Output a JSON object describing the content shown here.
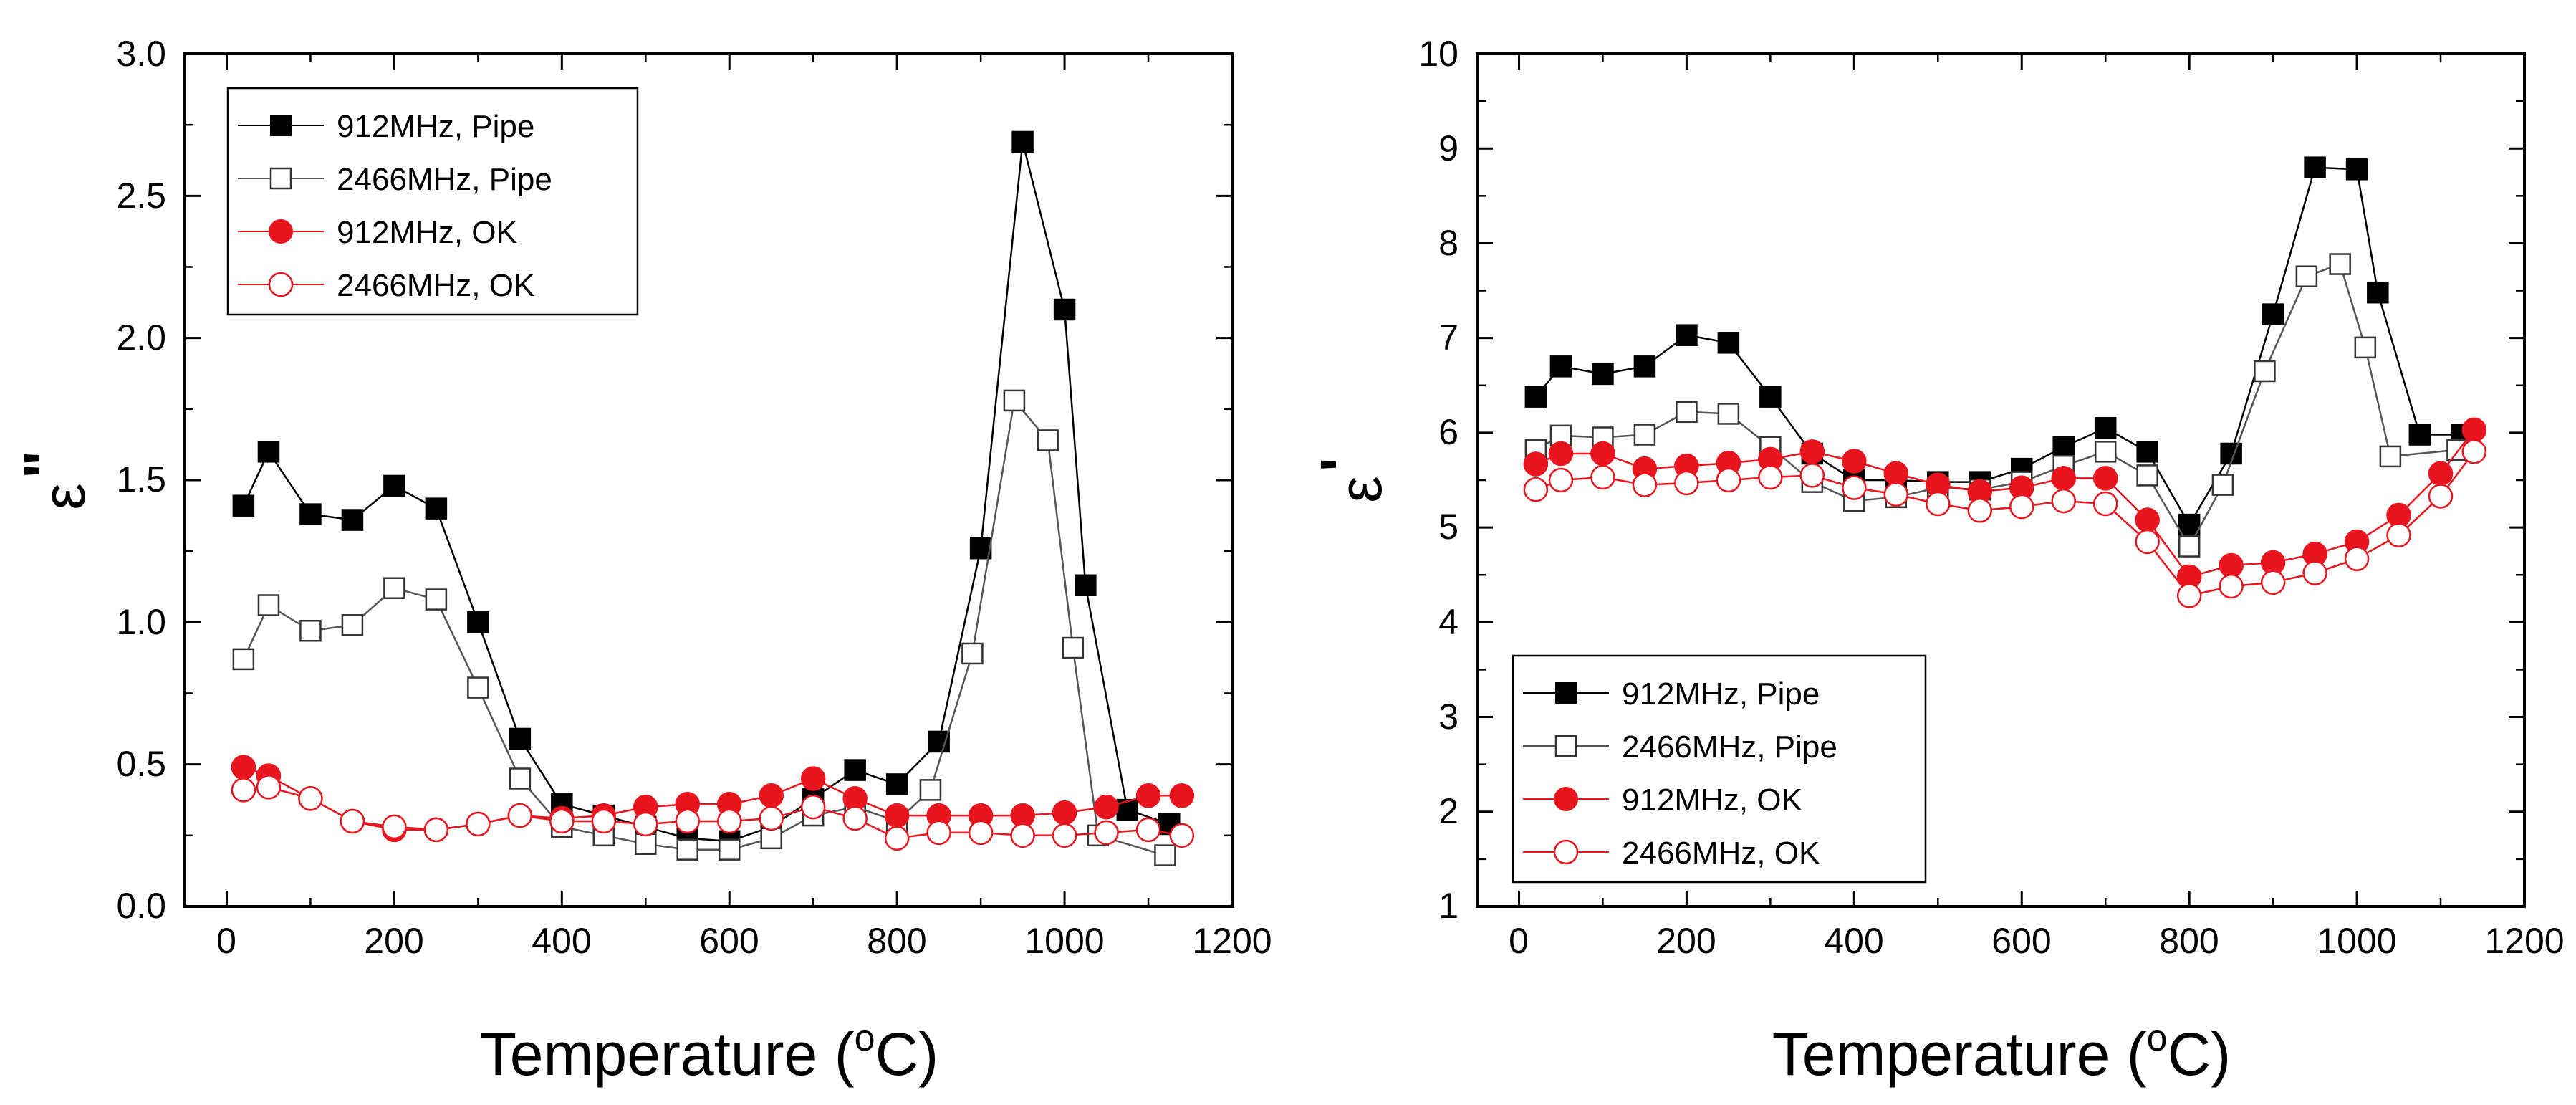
{
  "chart_data": [
    {
      "type": "line",
      "panel": "left",
      "title": "",
      "xlabel": "Temperature (oC)",
      "xlabel_parts": {
        "main": "Temperature (",
        "sup": "o",
        "unit": "C)"
      },
      "ylabel": "ε\"",
      "ylabel_parts": {
        "main": "ε",
        "mark": "\""
      },
      "xlim": [
        -50,
        1200
      ],
      "ylim": [
        0.0,
        3.0
      ],
      "xticks": [
        0,
        200,
        400,
        600,
        800,
        1000,
        1200
      ],
      "yticks": [
        0.0,
        0.5,
        1.0,
        1.5,
        2.0,
        2.5,
        3.0
      ],
      "xtick_labels": [
        "0",
        "200",
        "400",
        "600",
        "800",
        "1000",
        "1200"
      ],
      "ytick_labels": [
        "0.0",
        "0.5",
        "1.0",
        "1.5",
        "2.0",
        "2.5",
        "3.0"
      ],
      "grid": false,
      "legend_position": "top-left",
      "series": [
        {
          "name": "912MHz, Pipe",
          "color": "#000000",
          "marker": "square",
          "filled": true,
          "x": [
            20,
            50,
            100,
            150,
            200,
            250,
            300,
            350,
            400,
            450,
            500,
            550,
            600,
            650,
            700,
            750,
            800,
            850,
            900,
            950,
            1000,
            1025,
            1075,
            1125
          ],
          "y": [
            1.41,
            1.6,
            1.38,
            1.36,
            1.48,
            1.4,
            1.0,
            0.59,
            0.36,
            0.32,
            0.28,
            0.24,
            0.23,
            0.28,
            0.38,
            0.48,
            0.43,
            0.58,
            1.26,
            2.69,
            2.1,
            1.13,
            0.34,
            0.29
          ]
        },
        {
          "name": "2466MHz, Pipe",
          "color": "#555555",
          "marker": "square",
          "filled": false,
          "x": [
            20,
            50,
            100,
            150,
            200,
            250,
            300,
            350,
            400,
            450,
            500,
            550,
            600,
            650,
            700,
            750,
            800,
            840,
            890,
            940,
            980,
            1010,
            1040,
            1120
          ],
          "y": [
            0.87,
            1.06,
            0.97,
            0.99,
            1.12,
            1.08,
            0.77,
            0.45,
            0.28,
            0.25,
            0.22,
            0.2,
            0.2,
            0.24,
            0.32,
            0.35,
            0.3,
            0.41,
            0.89,
            1.78,
            1.64,
            0.91,
            0.25,
            0.18
          ]
        },
        {
          "name": "912MHz, OK",
          "color": "#e8141e",
          "marker": "circle",
          "filled": true,
          "x": [
            20,
            50,
            100,
            150,
            200,
            250,
            300,
            350,
            400,
            450,
            500,
            550,
            600,
            650,
            700,
            750,
            800,
            850,
            900,
            950,
            1000,
            1050,
            1100,
            1140
          ],
          "y": [
            0.49,
            0.46,
            0.38,
            0.3,
            0.27,
            0.27,
            0.29,
            0.32,
            0.31,
            0.32,
            0.35,
            0.36,
            0.36,
            0.39,
            0.45,
            0.38,
            0.32,
            0.32,
            0.32,
            0.32,
            0.33,
            0.35,
            0.39,
            0.39
          ]
        },
        {
          "name": "2466MHz, OK",
          "color": "#e8141e",
          "marker": "circle",
          "filled": false,
          "x": [
            20,
            50,
            100,
            150,
            200,
            250,
            300,
            350,
            400,
            450,
            500,
            550,
            600,
            650,
            700,
            750,
            800,
            850,
            900,
            950,
            1000,
            1050,
            1100,
            1140
          ],
          "y": [
            0.41,
            0.42,
            0.38,
            0.3,
            0.28,
            0.27,
            0.29,
            0.32,
            0.3,
            0.3,
            0.29,
            0.3,
            0.3,
            0.31,
            0.35,
            0.31,
            0.24,
            0.26,
            0.26,
            0.25,
            0.25,
            0.26,
            0.27,
            0.25
          ]
        }
      ]
    },
    {
      "type": "line",
      "panel": "right",
      "title": "",
      "xlabel": "Temperature (oC)",
      "xlabel_parts": {
        "main": "Temperature (",
        "sup": "o",
        "unit": "C)"
      },
      "ylabel": "ε'",
      "ylabel_parts": {
        "main": "ε",
        "mark": "'"
      },
      "xlim": [
        -50,
        1200
      ],
      "ylim": [
        1,
        10
      ],
      "xticks": [
        0,
        200,
        400,
        600,
        800,
        1000,
        1200
      ],
      "yticks": [
        1,
        2,
        3,
        4,
        5,
        6,
        7,
        8,
        9,
        10
      ],
      "xtick_labels": [
        "0",
        "200",
        "400",
        "600",
        "800",
        "1000",
        "1200"
      ],
      "ytick_labels": [
        "1",
        "2",
        "3",
        "4",
        "5",
        "6",
        "7",
        "8",
        "9",
        "10"
      ],
      "grid": false,
      "legend_position": "bottom-left",
      "series": [
        {
          "name": "912MHz, Pipe",
          "color": "#000000",
          "marker": "square",
          "filled": true,
          "x": [
            20,
            50,
            100,
            150,
            200,
            250,
            300,
            350,
            400,
            450,
            500,
            550,
            600,
            650,
            700,
            750,
            800,
            850,
            900,
            950,
            1000,
            1025,
            1075,
            1125
          ],
          "y": [
            6.38,
            6.7,
            6.62,
            6.7,
            7.03,
            6.95,
            6.38,
            5.78,
            5.5,
            5.5,
            5.48,
            5.48,
            5.62,
            5.85,
            6.05,
            5.8,
            5.03,
            5.78,
            7.25,
            8.8,
            8.78,
            7.48,
            5.98,
            5.98
          ]
        },
        {
          "name": "2466MHz, Pipe",
          "color": "#555555",
          "marker": "square",
          "filled": false,
          "x": [
            20,
            50,
            100,
            150,
            200,
            250,
            300,
            350,
            400,
            450,
            500,
            550,
            600,
            650,
            700,
            750,
            800,
            840,
            890,
            940,
            980,
            1010,
            1040,
            1120
          ],
          "y": [
            5.82,
            5.97,
            5.95,
            5.98,
            6.22,
            6.2,
            5.85,
            5.48,
            5.28,
            5.32,
            5.42,
            5.4,
            5.48,
            5.65,
            5.8,
            5.55,
            4.8,
            5.45,
            6.65,
            7.65,
            7.78,
            6.9,
            5.75,
            5.82
          ]
        },
        {
          "name": "912MHz, OK",
          "color": "#e8141e",
          "marker": "circle",
          "filled": true,
          "x": [
            20,
            50,
            100,
            150,
            200,
            250,
            300,
            350,
            400,
            450,
            500,
            550,
            600,
            650,
            700,
            750,
            800,
            850,
            900,
            950,
            1000,
            1050,
            1100,
            1140
          ],
          "y": [
            5.67,
            5.78,
            5.78,
            5.62,
            5.65,
            5.68,
            5.72,
            5.8,
            5.7,
            5.57,
            5.45,
            5.38,
            5.42,
            5.52,
            5.52,
            5.08,
            4.48,
            4.6,
            4.63,
            4.72,
            4.85,
            5.13,
            5.57,
            6.03
          ]
        },
        {
          "name": "2466MHz, OK",
          "color": "#e8141e",
          "marker": "circle",
          "filled": false,
          "x": [
            20,
            50,
            100,
            150,
            200,
            250,
            300,
            350,
            400,
            450,
            500,
            550,
            600,
            650,
            700,
            750,
            800,
            850,
            900,
            950,
            1000,
            1050,
            1100,
            1140
          ],
          "y": [
            5.4,
            5.5,
            5.53,
            5.45,
            5.47,
            5.5,
            5.53,
            5.55,
            5.42,
            5.35,
            5.25,
            5.18,
            5.22,
            5.28,
            5.25,
            4.85,
            4.28,
            4.38,
            4.42,
            4.52,
            4.67,
            4.92,
            5.33,
            5.8
          ]
        }
      ]
    }
  ]
}
